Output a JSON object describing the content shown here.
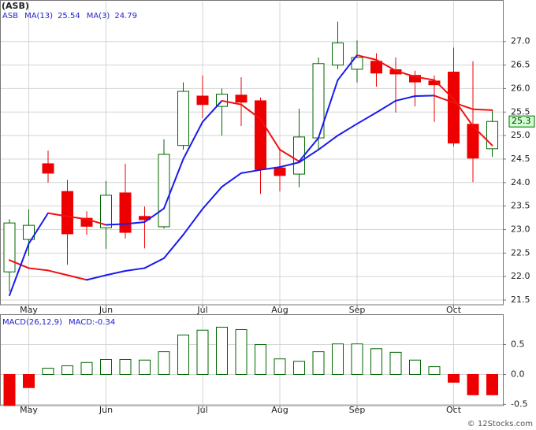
{
  "chart_data": [
    {
      "type": "candlestick",
      "title": "(ASB)",
      "symbol": "ASB",
      "categories": [
        null,
        "May",
        null,
        null,
        null,
        "Jun",
        null,
        null,
        null,
        null,
        "Jul",
        null,
        null,
        null,
        "Aug",
        null,
        null,
        null,
        "Sep",
        null,
        null,
        null,
        null,
        "Oct",
        null,
        null
      ],
      "open": [
        22.1,
        22.79,
        24.4,
        23.81,
        23.24,
        23.04,
        23.78,
        23.28,
        23.06,
        24.79,
        25.84,
        25.62,
        25.86,
        25.74,
        24.31,
        24.18,
        24.95,
        26.5,
        26.41,
        26.58,
        26.4,
        26.28,
        26.16,
        26.35,
        25.24,
        24.72
      ],
      "high": [
        23.22,
        23.43,
        24.68,
        24.06,
        23.39,
        24.03,
        24.4,
        23.49,
        24.92,
        26.13,
        26.28,
        26.0,
        26.24,
        25.81,
        24.73,
        25.57,
        26.66,
        27.42,
        27.02,
        26.75,
        26.66,
        26.38,
        26.28,
        26.87,
        26.58,
        25.54
      ],
      "low": [
        21.68,
        22.44,
        24.0,
        22.25,
        22.89,
        22.59,
        22.81,
        22.6,
        23.02,
        24.7,
        25.37,
        25.0,
        25.2,
        23.76,
        23.81,
        23.9,
        24.72,
        26.41,
        26.13,
        26.04,
        25.49,
        25.62,
        25.29,
        24.77,
        24.01,
        24.55
      ],
      "close": [
        23.14,
        23.09,
        24.2,
        22.91,
        23.07,
        23.73,
        22.94,
        23.21,
        24.6,
        25.94,
        25.66,
        25.88,
        25.71,
        24.28,
        24.15,
        24.97,
        26.53,
        26.97,
        26.66,
        26.33,
        26.31,
        26.14,
        26.08,
        24.84,
        24.52,
        25.3
      ],
      "up_color": "#006600",
      "down_color": "#ee0000",
      "series": [
        {
          "name": "MA(13)",
          "values": [
            22.35,
            22.18,
            22.13,
            22.03,
            21.93,
            22.03,
            22.12,
            22.18,
            22.39,
            22.89,
            23.44,
            23.91,
            24.2,
            24.27,
            24.33,
            24.43,
            24.7,
            25.0,
            25.25,
            25.49,
            25.74,
            25.84,
            25.85,
            25.7,
            25.56,
            25.54
          ]
        },
        {
          "name": "MA(3)",
          "values": [
            21.6,
            22.7,
            23.35,
            23.28,
            23.22,
            23.1,
            23.12,
            23.16,
            23.45,
            24.5,
            25.29,
            25.74,
            25.66,
            25.35,
            24.7,
            24.45,
            24.95,
            26.18,
            26.71,
            26.61,
            26.38,
            26.25,
            26.18,
            25.78,
            25.2,
            24.79
          ]
        }
      ],
      "line_rising_color": "#1a1aee",
      "line_falling_color": "#ee1111",
      "ylim": [
        21.4,
        27.85
      ],
      "yticks": [
        21.5,
        {
          "value": 22,
          "label": "22.0"
        },
        22.5,
        {
          "value": 23,
          "label": "23.0"
        },
        23.5,
        {
          "value": 24,
          "label": "24.0"
        },
        24.5,
        {
          "value": 25,
          "label": "25.0"
        },
        25.5,
        {
          "value": 26,
          "label": "26.0"
        },
        26.5,
        {
          "value": 27,
          "label": "27.0"
        }
      ],
      "grid": true
    },
    {
      "type": "bar",
      "title": "MACD(26,12,9)",
      "value_name": "MACD:",
      "categories": [
        null,
        "May",
        null,
        null,
        null,
        "Jun",
        null,
        null,
        null,
        null,
        "Jul",
        null,
        null,
        null,
        "Aug",
        null,
        null,
        null,
        "Sep",
        null,
        null,
        null,
        null,
        "Oct",
        null,
        null
      ],
      "values": [
        -0.52,
        -0.22,
        0.105,
        0.145,
        0.2,
        0.25,
        0.25,
        0.24,
        0.38,
        0.66,
        0.74,
        0.79,
        0.75,
        0.5,
        0.26,
        0.22,
        0.38,
        0.51,
        0.51,
        0.43,
        0.37,
        0.24,
        0.13,
        -0.13,
        -0.34,
        -0.34
      ],
      "up_color": "#006600",
      "down_color": "#ee0000",
      "ylim": [
        -0.52,
        0.98
      ],
      "yticks": [
        -0.5,
        {
          "value": 0,
          "label": "0.0"
        },
        0.5
      ],
      "grid": true
    }
  ],
  "footer": "© 12Stocks.com"
}
